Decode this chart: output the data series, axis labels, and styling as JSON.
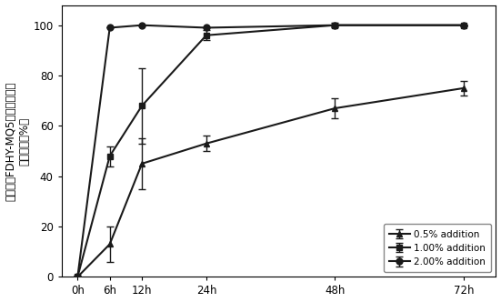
{
  "x_labels": [
    "0h",
    "6h",
    "12h",
    "24h",
    "48h",
    "72h"
  ],
  "x_values": [
    0,
    6,
    12,
    24,
    48,
    72
  ],
  "series": [
    {
      "label": "0.5% addition",
      "y": [
        0,
        13,
        45,
        53,
        67,
        75
      ],
      "yerr": [
        0,
        7,
        10,
        3,
        4,
        3
      ],
      "marker": "^",
      "color": "#1a1a1a",
      "linestyle": "-"
    },
    {
      "label": "1.00% addition",
      "y": [
        0,
        48,
        68,
        96,
        100,
        100
      ],
      "yerr": [
        0,
        4,
        15,
        2,
        1,
        0
      ],
      "marker": "s",
      "color": "#1a1a1a",
      "linestyle": "-"
    },
    {
      "label": "2.00% addition",
      "y": [
        0,
        99,
        100,
        99,
        100,
        100
      ],
      "yerr": [
        0,
        0,
        0,
        0,
        0,
        0
      ],
      "marker": "o",
      "color": "#1a1a1a",
      "linestyle": "-"
    }
  ],
  "ylabel_line1": "不同浓度FDHY-MQ5对米氏凯伦藻",
  "ylabel_line2": "的溶藻率（%）",
  "ylim": [
    0,
    108
  ],
  "yticks": [
    0,
    20,
    40,
    60,
    80,
    100
  ],
  "background_color": "#ffffff",
  "linewidth": 1.5,
  "markersize": 5,
  "capsize": 3,
  "elinewidth": 1.0
}
